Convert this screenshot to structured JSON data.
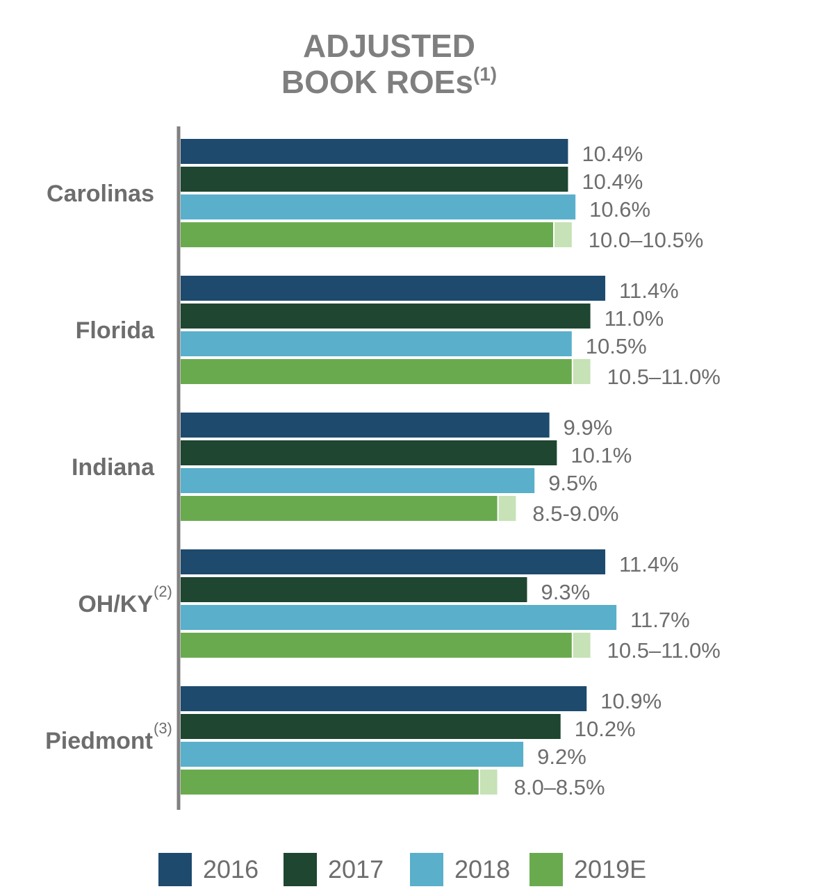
{
  "chart_data": {
    "type": "bar",
    "orientation": "horizontal",
    "title": "ADJUSTED BOOK ROEs",
    "title_line1": "ADJUSTED",
    "title_line2": "BOOK ROEs",
    "title_footnote": "(1)",
    "categories": [
      "Carolinas",
      "Florida",
      "Indiana",
      "OH/KY",
      "Piedmont"
    ],
    "category_footnotes": [
      "",
      "",
      "",
      "(2)",
      "(3)"
    ],
    "xlim": [
      0,
      12.2
    ],
    "grid": false,
    "legend_position": "bottom",
    "series": [
      {
        "name": "2016",
        "color": "#1e4a6e",
        "values": [
          10.4,
          11.4,
          9.9,
          11.4,
          10.9
        ],
        "labels": [
          "10.4%",
          "11.4%",
          "9.9%",
          "11.4%",
          "10.9%"
        ]
      },
      {
        "name": "2017",
        "color": "#1e4631",
        "values": [
          10.4,
          11.0,
          10.1,
          9.3,
          10.2
        ],
        "labels": [
          "10.4%",
          "11.0%",
          "10.1%",
          "9.3%",
          "10.2%"
        ]
      },
      {
        "name": "2018",
        "color": "#5aafcb",
        "values": [
          10.6,
          10.5,
          9.5,
          11.7,
          9.2
        ],
        "labels": [
          "10.6%",
          "10.5%",
          "9.5%",
          "11.7%",
          "9.2%"
        ]
      },
      {
        "name": "2019E",
        "color": "#6aaa4f",
        "range_color": "#c6e2b6",
        "low": [
          10.0,
          10.5,
          8.5,
          10.5,
          8.0
        ],
        "high": [
          10.5,
          11.0,
          9.0,
          11.0,
          8.5
        ],
        "labels": [
          "10.0–10.5%",
          "10.5–11.0%",
          "8.5-9.0%",
          "10.5–11.0%",
          "8.0–8.5%"
        ]
      }
    ]
  }
}
